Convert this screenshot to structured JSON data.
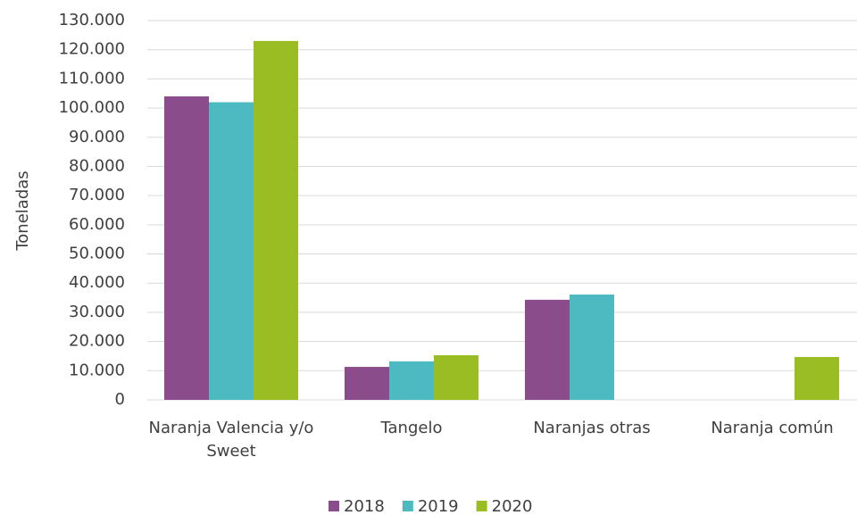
{
  "chart_data": {
    "type": "bar",
    "y_label": "Toneladas",
    "categories": [
      "Naranja Valencia y/o Sweet",
      "Tangelo",
      "Naranjas otras",
      "Naranja común"
    ],
    "series": [
      {
        "name": "2018",
        "color": "#8a4c8a",
        "values": [
          104000,
          11300,
          34300,
          0
        ]
      },
      {
        "name": "2019",
        "color": "#4db9c1",
        "values": [
          102000,
          13200,
          36100,
          0
        ]
      },
      {
        "name": "2020",
        "color": "#99bd22",
        "values": [
          123000,
          15300,
          0,
          14700
        ]
      }
    ],
    "ylim": [
      0,
      130000
    ],
    "yticks": [
      0,
      {
        "value": 10000,
        "label": "10.000"
      },
      {
        "value": 20000,
        "label": "20.000"
      },
      {
        "value": 30000,
        "label": "30.000"
      },
      {
        "value": 40000,
        "label": "40.000"
      },
      {
        "value": 50000,
        "label": "50.000"
      },
      {
        "value": 60000,
        "label": "60.000"
      },
      {
        "value": 70000,
        "label": "70.000"
      },
      {
        "value": 80000,
        "label": "80.000"
      },
      {
        "value": 90000,
        "label": "90.000"
      },
      {
        "value": 100000,
        "label": "100.000"
      },
      {
        "value": 110000,
        "label": "110.000"
      },
      {
        "value": 120000,
        "label": "120.000"
      },
      {
        "value": 130000,
        "label": "130.000"
      }
    ],
    "grid": true
  }
}
